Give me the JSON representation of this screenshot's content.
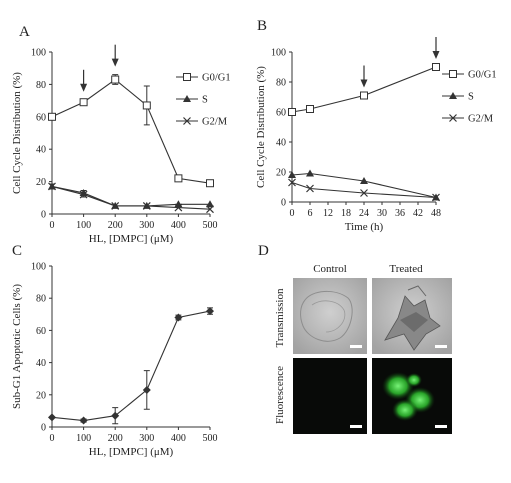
{
  "chart_data": [
    {
      "panel": "A",
      "type": "line",
      "xlabel": "HL, [DMPC] (μM)",
      "ylabel": "Cell Cycle Distribution (%)",
      "x": [
        0,
        100,
        200,
        300,
        400,
        500
      ],
      "xticks": [
        "0",
        "100",
        "200",
        "300",
        "400",
        "500"
      ],
      "xlim": [
        0,
        500
      ],
      "ylim": [
        0,
        100
      ],
      "yticks": [
        "0",
        "20",
        "40",
        "60",
        "80",
        "100"
      ],
      "series": [
        {
          "name": "G0/G1",
          "marker": "square-open",
          "values": [
            60,
            69,
            83,
            67,
            22,
            19
          ],
          "errors": [
            0,
            1.5,
            3,
            12,
            0,
            0
          ]
        },
        {
          "name": "S",
          "marker": "triangle-filled",
          "values": [
            17,
            13,
            5,
            5,
            6,
            6
          ],
          "errors": [
            1.5,
            1.5,
            0,
            0,
            0,
            0
          ]
        },
        {
          "name": "G2/M",
          "marker": "cross",
          "values": [
            17,
            12,
            5,
            5,
            4,
            3
          ],
          "errors": [
            1.5,
            1.5,
            0,
            0,
            0,
            0
          ]
        }
      ],
      "arrows_at_x": [
        100,
        200
      ],
      "legend": "right"
    },
    {
      "panel": "B",
      "type": "line",
      "xlabel": "Time (h)",
      "ylabel": "Cell Cycle Distribution (%)",
      "x": [
        0,
        6,
        24,
        48
      ],
      "xticks": [
        "0",
        "6",
        "12",
        "18",
        "24",
        "30",
        "36",
        "42",
        "48"
      ],
      "xlim": [
        0,
        48
      ],
      "ylim": [
        0,
        100
      ],
      "yticks": [
        "0",
        "20",
        "40",
        "60",
        "80",
        "100"
      ],
      "series": [
        {
          "name": "G0/G1",
          "marker": "square-open",
          "values": [
            60,
            62,
            71,
            90
          ]
        },
        {
          "name": "S",
          "marker": "triangle-filled",
          "values": [
            18,
            19,
            14,
            3
          ]
        },
        {
          "name": "G2/M",
          "marker": "cross",
          "values": [
            13,
            9,
            6,
            3
          ]
        }
      ],
      "arrows_at_x": [
        24,
        48
      ],
      "legend": "right"
    },
    {
      "panel": "C",
      "type": "line",
      "xlabel": "HL, [DMPC] (μM)",
      "ylabel": "Sub-G1 Apoptotic Cells (%)",
      "x": [
        0,
        100,
        200,
        300,
        400,
        500
      ],
      "xticks": [
        "0",
        "100",
        "200",
        "300",
        "400",
        "500"
      ],
      "xlim": [
        0,
        500
      ],
      "ylim": [
        0,
        100
      ],
      "yticks": [
        "0",
        "20",
        "40",
        "60",
        "80",
        "100"
      ],
      "series": [
        {
          "marker": "diamond-filled",
          "values": [
            6,
            4,
            7,
            23,
            68,
            72
          ],
          "errors": [
            0,
            1,
            5,
            12,
            1.5,
            2
          ]
        }
      ]
    }
  ],
  "panel_d": {
    "letter": "D",
    "columns": [
      "Control",
      "Treated"
    ],
    "rows": [
      "Transmission",
      "Fluorescence"
    ]
  },
  "colors": {
    "line": "#333333",
    "fluorescence_background": "#080a08",
    "fluorescence_signal": "#3fd23f",
    "transmission_background": "#b9b9b9"
  }
}
